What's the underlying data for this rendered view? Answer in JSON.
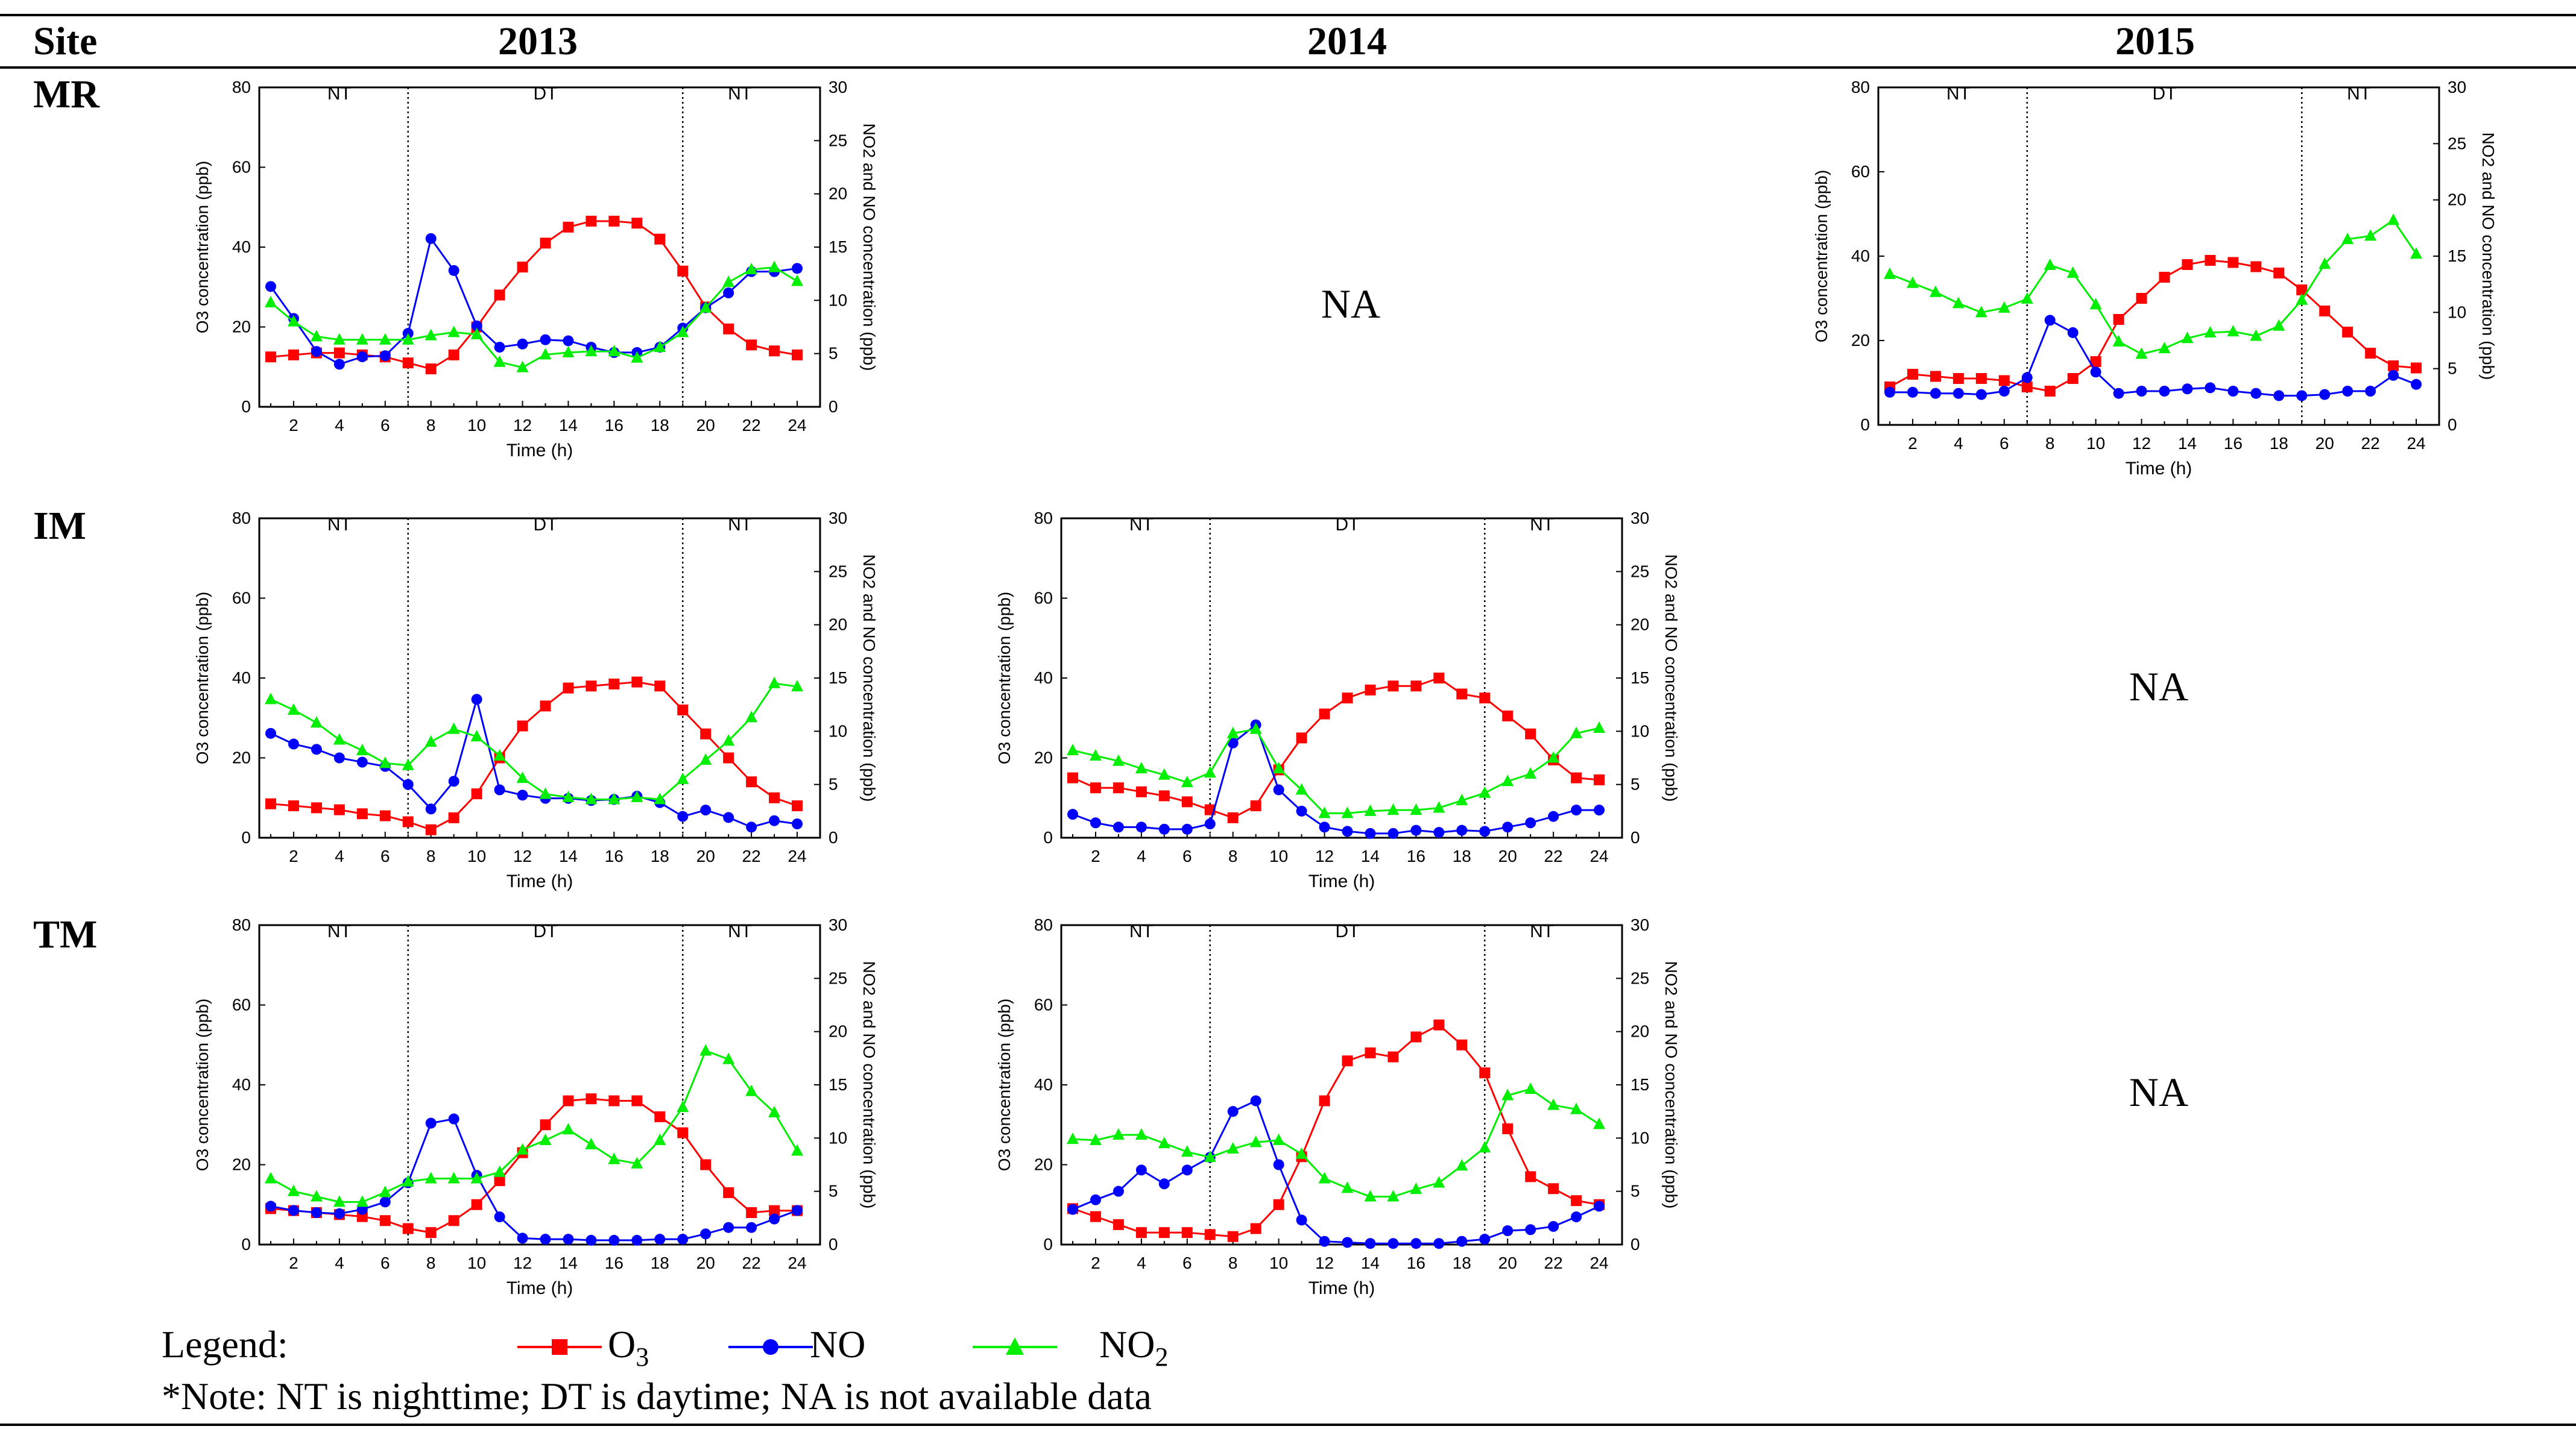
{
  "header": {
    "site": "Site",
    "years": [
      "2013",
      "2014",
      "2015"
    ]
  },
  "sites": [
    "MR",
    "IM",
    "TM"
  ],
  "na_label": "NA",
  "legend": {
    "title": "Legend:",
    "items": [
      {
        "name": "O",
        "sub": "3",
        "color": "#ff0000",
        "marker": "square"
      },
      {
        "name": "NO",
        "sub": "",
        "color": "#0000ff",
        "marker": "circle"
      },
      {
        "name": "NO",
        "sub": "2",
        "color": "#00ee00",
        "marker": "triangle"
      }
    ]
  },
  "note": "*Note: NT is nighttime; DT is daytime; NA is not available data",
  "chart_data": [
    {
      "id": "MR-2013",
      "site": "MR",
      "year": "2013",
      "type": "line",
      "xlabel": "Time (h)",
      "ylabel_left": "O3 concentration (ppb)",
      "ylabel_right": "NO2 and NO concentration (ppb)",
      "xlim": [
        1,
        24
      ],
      "ylim_left": [
        0,
        80
      ],
      "ylim_right": [
        0,
        30
      ],
      "xticks": [
        2,
        4,
        6,
        8,
        10,
        12,
        14,
        16,
        18,
        20,
        22,
        24
      ],
      "yticks_left": [
        0,
        20,
        40,
        60,
        80
      ],
      "yticks_right": [
        0,
        5,
        10,
        15,
        20,
        25,
        30
      ],
      "periods": [
        {
          "label": "NT",
          "from": 1,
          "to": 7
        },
        {
          "label": "DT",
          "from": 7,
          "to": 19
        },
        {
          "label": "NT",
          "from": 19,
          "to": 24
        }
      ],
      "x": [
        1,
        2,
        3,
        4,
        5,
        6,
        7,
        8,
        9,
        10,
        11,
        12,
        13,
        14,
        15,
        16,
        17,
        18,
        19,
        20,
        21,
        22,
        23,
        24
      ],
      "series": [
        {
          "name": "O3",
          "axis": "left",
          "values": [
            12.5,
            13,
            13.5,
            13.5,
            13,
            12.5,
            11,
            9.5,
            13,
            20,
            28,
            35,
            41,
            45,
            46.5,
            46.5,
            46,
            42,
            34,
            25,
            19.5,
            15.5,
            14,
            13
          ]
        },
        {
          "name": "NO",
          "axis": "right",
          "values": [
            11.3,
            8.3,
            5.2,
            4,
            4.7,
            4.8,
            6.9,
            15.8,
            12.8,
            7.6,
            5.6,
            5.9,
            6.3,
            6.2,
            5.6,
            5.1,
            5.1,
            5.6,
            7.4,
            9.3,
            10.7,
            12.7,
            12.7,
            13
          ]
        },
        {
          "name": "NO2",
          "axis": "right",
          "values": [
            9.8,
            8,
            6.6,
            6.3,
            6.3,
            6.3,
            6.3,
            6.7,
            7,
            6.8,
            4.2,
            3.7,
            4.9,
            5.1,
            5.2,
            5.2,
            4.6,
            5.6,
            7,
            9.3,
            11.7,
            12.9,
            13.1,
            11.8
          ]
        }
      ]
    },
    {
      "id": "MR-2015",
      "site": "MR",
      "year": "2015",
      "type": "line",
      "xlabel": "Time (h)",
      "ylabel_left": "O3 concentration (ppb)",
      "ylabel_right": "NO2 and NO concentration (ppb)",
      "xlim": [
        1,
        24
      ],
      "ylim_left": [
        0,
        80
      ],
      "ylim_right": [
        0,
        30
      ],
      "xticks": [
        2,
        4,
        6,
        8,
        10,
        12,
        14,
        16,
        18,
        20,
        22,
        24
      ],
      "yticks_left": [
        0,
        20,
        40,
        60,
        80
      ],
      "yticks_right": [
        0,
        5,
        10,
        15,
        20,
        25,
        30
      ],
      "periods": [
        {
          "label": "NT",
          "from": 1,
          "to": 7
        },
        {
          "label": "DT",
          "from": 7,
          "to": 19
        },
        {
          "label": "NT",
          "from": 19,
          "to": 24
        }
      ],
      "x": [
        1,
        2,
        3,
        4,
        5,
        6,
        7,
        8,
        9,
        10,
        11,
        12,
        13,
        14,
        15,
        16,
        17,
        18,
        19,
        20,
        21,
        22,
        23,
        24
      ],
      "series": [
        {
          "name": "O3",
          "axis": "left",
          "values": [
            9,
            12,
            11.5,
            11,
            11,
            10.5,
            9,
            8,
            11,
            15,
            25,
            30,
            35,
            38,
            39,
            38.5,
            37.5,
            36,
            32,
            27,
            22,
            17,
            14,
            13.5
          ]
        },
        {
          "name": "NO",
          "axis": "right",
          "values": [
            2.9,
            2.9,
            2.8,
            2.8,
            2.7,
            3,
            4.2,
            9.3,
            8.2,
            4.7,
            2.8,
            3,
            3,
            3.2,
            3.3,
            3,
            2.8,
            2.6,
            2.6,
            2.7,
            3,
            3,
            4.4,
            3.6
          ]
        },
        {
          "name": "NO2",
          "axis": "right",
          "values": [
            13.4,
            12.6,
            11.8,
            10.8,
            10,
            10.4,
            11.2,
            14.2,
            13.5,
            10.7,
            7.4,
            6.3,
            6.8,
            7.7,
            8.2,
            8.3,
            7.9,
            8.8,
            11.1,
            14.3,
            16.5,
            16.8,
            18.2,
            15.2
          ]
        }
      ]
    },
    {
      "id": "IM-2013",
      "site": "IM",
      "year": "2013",
      "type": "line",
      "xlabel": "Time (h)",
      "ylabel_left": "O3 concentration (ppb)",
      "ylabel_right": "NO2 and NO concentration (ppb)",
      "xlim": [
        1,
        24
      ],
      "ylim_left": [
        0,
        80
      ],
      "ylim_right": [
        0,
        30
      ],
      "xticks": [
        2,
        4,
        6,
        8,
        10,
        12,
        14,
        16,
        18,
        20,
        22,
        24
      ],
      "yticks_left": [
        0,
        20,
        40,
        60,
        80
      ],
      "yticks_right": [
        0,
        5,
        10,
        15,
        20,
        25,
        30
      ],
      "periods": [
        {
          "label": "NT",
          "from": 1,
          "to": 7
        },
        {
          "label": "DT",
          "from": 7,
          "to": 19
        },
        {
          "label": "NT",
          "from": 19,
          "to": 24
        }
      ],
      "x": [
        1,
        2,
        3,
        4,
        5,
        6,
        7,
        8,
        9,
        10,
        11,
        12,
        13,
        14,
        15,
        16,
        17,
        18,
        19,
        20,
        21,
        22,
        23,
        24
      ],
      "series": [
        {
          "name": "O3",
          "axis": "left",
          "values": [
            8.5,
            8,
            7.5,
            7,
            6,
            5.5,
            4,
            2,
            5,
            11,
            20,
            28,
            33,
            37.5,
            38,
            38.5,
            39,
            38,
            32,
            26,
            20,
            14,
            10,
            8
          ]
        },
        {
          "name": "NO",
          "axis": "right",
          "values": [
            9.8,
            8.8,
            8.3,
            7.5,
            7.1,
            6.7,
            5,
            2.7,
            5.3,
            13,
            4.5,
            4,
            3.7,
            3.7,
            3.5,
            3.6,
            3.9,
            3.3,
            2,
            2.6,
            1.9,
            1,
            1.6,
            1.3
          ]
        },
        {
          "name": "NO2",
          "axis": "right",
          "values": [
            13,
            12,
            10.8,
            9.2,
            8.2,
            7,
            6.8,
            9,
            10.2,
            9.5,
            7.7,
            5.6,
            4.1,
            3.8,
            3.6,
            3.6,
            3.8,
            3.6,
            5.5,
            7.3,
            9.1,
            11.3,
            14.5,
            14.2
          ]
        }
      ]
    },
    {
      "id": "IM-2014",
      "site": "IM",
      "year": "2014",
      "type": "line",
      "xlabel": "Time (h)",
      "ylabel_left": "O3 concentration (ppb)",
      "ylabel_right": "NO2 and NO concentration (ppb)",
      "xlim": [
        1,
        24
      ],
      "ylim_left": [
        0,
        80
      ],
      "ylim_right": [
        0,
        30
      ],
      "xticks": [
        2,
        4,
        6,
        8,
        10,
        12,
        14,
        16,
        18,
        20,
        22,
        24
      ],
      "yticks_left": [
        0,
        20,
        40,
        60,
        80
      ],
      "yticks_right": [
        0,
        5,
        10,
        15,
        20,
        25,
        30
      ],
      "periods": [
        {
          "label": "NT",
          "from": 1,
          "to": 7
        },
        {
          "label": "DT",
          "from": 7,
          "to": 19
        },
        {
          "label": "NT",
          "from": 19,
          "to": 24
        }
      ],
      "x": [
        1,
        2,
        3,
        4,
        5,
        6,
        7,
        8,
        9,
        10,
        11,
        12,
        13,
        14,
        15,
        16,
        17,
        18,
        19,
        20,
        21,
        22,
        23,
        24
      ],
      "series": [
        {
          "name": "O3",
          "axis": "left",
          "values": [
            15,
            12.5,
            12.5,
            11.5,
            10.5,
            9,
            7,
            5,
            8,
            17,
            25,
            31,
            35,
            37,
            38,
            38,
            40,
            36,
            35,
            30.5,
            26,
            19.5,
            15,
            14.5
          ]
        },
        {
          "name": "NO",
          "axis": "right",
          "values": [
            2.2,
            1.4,
            1,
            1,
            0.8,
            0.8,
            1.3,
            8.9,
            10.6,
            4.5,
            2.5,
            1,
            0.6,
            0.4,
            0.4,
            0.7,
            0.5,
            0.7,
            0.6,
            1,
            1.4,
            2,
            2.6,
            2.6
          ]
        },
        {
          "name": "NO2",
          "axis": "right",
          "values": [
            8.2,
            7.7,
            7.2,
            6.5,
            5.9,
            5.2,
            6.1,
            9.8,
            10.2,
            6.5,
            4.5,
            2.3,
            2.3,
            2.5,
            2.6,
            2.6,
            2.8,
            3.5,
            4.2,
            5.3,
            6,
            7.5,
            9.8,
            10.3
          ]
        }
      ]
    },
    {
      "id": "TM-2013",
      "site": "TM",
      "year": "2013",
      "type": "line",
      "xlabel": "Time (h)",
      "ylabel_left": "O3 concentration (ppb)",
      "ylabel_right": "NO2 and NO concentration (ppb)",
      "xlim": [
        1,
        24
      ],
      "ylim_left": [
        0,
        80
      ],
      "ylim_right": [
        0,
        30
      ],
      "xticks": [
        2,
        4,
        6,
        8,
        10,
        12,
        14,
        16,
        18,
        20,
        22,
        24
      ],
      "yticks_left": [
        0,
        20,
        40,
        60,
        80
      ],
      "yticks_right": [
        0,
        5,
        10,
        15,
        20,
        25,
        30
      ],
      "periods": [
        {
          "label": "NT",
          "from": 1,
          "to": 7
        },
        {
          "label": "DT",
          "from": 7,
          "to": 19
        },
        {
          "label": "NT",
          "from": 19,
          "to": 24
        }
      ],
      "x": [
        1,
        2,
        3,
        4,
        5,
        6,
        7,
        8,
        9,
        10,
        11,
        12,
        13,
        14,
        15,
        16,
        17,
        18,
        19,
        20,
        21,
        22,
        23,
        24
      ],
      "series": [
        {
          "name": "O3",
          "axis": "left",
          "values": [
            9,
            8.5,
            8,
            7.5,
            7,
            6,
            4,
            3,
            6,
            10,
            16,
            23,
            30,
            36,
            36.5,
            36,
            36,
            32,
            28,
            20,
            13,
            8,
            8.5,
            8.5
          ]
        },
        {
          "name": "NO",
          "axis": "right",
          "values": [
            3.6,
            3.2,
            3,
            2.9,
            3.3,
            4,
            5.8,
            11.4,
            11.8,
            6.5,
            2.6,
            0.6,
            0.5,
            0.5,
            0.4,
            0.4,
            0.4,
            0.5,
            0.5,
            1,
            1.6,
            1.6,
            2.4,
            3.2
          ]
        },
        {
          "name": "NO2",
          "axis": "right",
          "values": [
            6.2,
            5,
            4.5,
            4,
            4,
            4.9,
            5.9,
            6.2,
            6.2,
            6.2,
            6.8,
            8.9,
            9.8,
            10.8,
            9.4,
            8,
            7.6,
            9.8,
            12.9,
            18.2,
            17.4,
            14.4,
            12.4,
            8.8
          ]
        }
      ]
    },
    {
      "id": "TM-2014",
      "site": "TM",
      "year": "2014",
      "type": "line",
      "xlabel": "Time (h)",
      "ylabel_left": "O3 concentration (ppb)",
      "ylabel_right": "NO2 and NO concentration (ppb)",
      "xlim": [
        1,
        24
      ],
      "ylim_left": [
        0,
        80
      ],
      "ylim_right": [
        0,
        30
      ],
      "xticks": [
        2,
        4,
        6,
        8,
        10,
        12,
        14,
        16,
        18,
        20,
        22,
        24
      ],
      "yticks_left": [
        0,
        20,
        40,
        60,
        80
      ],
      "yticks_right": [
        0,
        5,
        10,
        15,
        20,
        25,
        30
      ],
      "periods": [
        {
          "label": "NT",
          "from": 1,
          "to": 7
        },
        {
          "label": "DT",
          "from": 7,
          "to": 19
        },
        {
          "label": "NT",
          "from": 19,
          "to": 24
        }
      ],
      "x": [
        1,
        2,
        3,
        4,
        5,
        6,
        7,
        8,
        9,
        10,
        11,
        12,
        13,
        14,
        15,
        16,
        17,
        18,
        19,
        20,
        21,
        22,
        23,
        24
      ],
      "series": [
        {
          "name": "O3",
          "axis": "left",
          "values": [
            9,
            7,
            5,
            3,
            3,
            3,
            2.5,
            2,
            4,
            10,
            22,
            36,
            46,
            48,
            47,
            52,
            55,
            50,
            43,
            29,
            17,
            14,
            11,
            10
          ]
        },
        {
          "name": "NO",
          "axis": "right",
          "values": [
            3.3,
            4.2,
            5,
            7,
            5.7,
            7,
            8.2,
            12.5,
            13.5,
            7.5,
            2.3,
            0.3,
            0.2,
            0.1,
            0.1,
            0.1,
            0.1,
            0.3,
            0.5,
            1.3,
            1.4,
            1.7,
            2.6,
            3.6
          ]
        },
        {
          "name": "NO2",
          "axis": "right",
          "values": [
            9.9,
            9.8,
            10.3,
            10.3,
            9.5,
            8.7,
            8.2,
            9,
            9.6,
            9.8,
            8.5,
            6.2,
            5.3,
            4.5,
            4.5,
            5.2,
            5.8,
            7.4,
            9.1,
            14,
            14.6,
            13.1,
            12.7,
            11.3
          ]
        }
      ]
    }
  ]
}
